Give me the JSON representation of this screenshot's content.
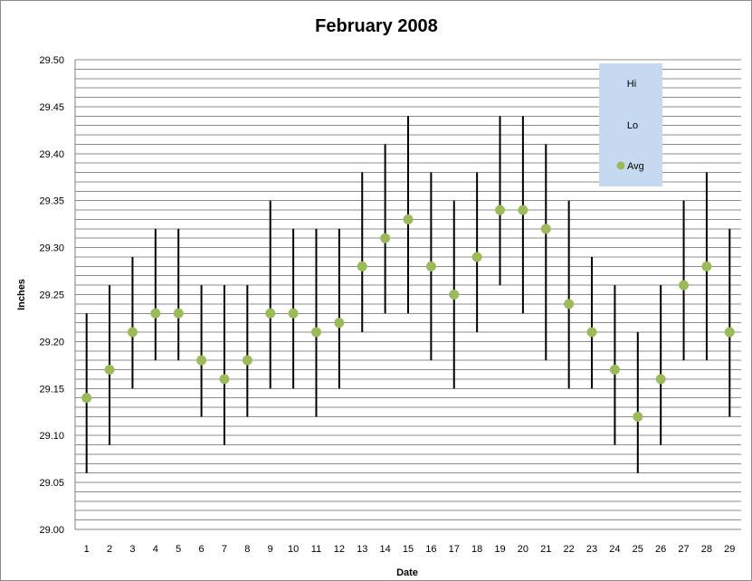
{
  "chart_data": {
    "type": "scatter",
    "title": "February 2008",
    "xlabel": "Date",
    "ylabel": "Inches",
    "ylim": [
      29.0,
      29.5
    ],
    "y_ticks": [
      "29.00",
      "29.05",
      "29.10",
      "29.15",
      "29.20",
      "29.25",
      "29.30",
      "29.35",
      "29.40",
      "29.45",
      "29.50"
    ],
    "x": [
      1,
      2,
      3,
      4,
      5,
      6,
      7,
      8,
      9,
      10,
      11,
      12,
      13,
      14,
      15,
      16,
      17,
      18,
      19,
      20,
      21,
      22,
      23,
      24,
      25,
      26,
      27,
      28,
      29
    ],
    "series": [
      {
        "name": "Hi",
        "values": [
          29.23,
          29.26,
          29.29,
          29.32,
          29.32,
          29.26,
          29.26,
          29.26,
          29.35,
          29.32,
          29.32,
          29.32,
          29.38,
          29.41,
          29.44,
          29.38,
          29.35,
          29.38,
          29.44,
          29.44,
          29.41,
          29.35,
          29.29,
          29.26,
          29.21,
          29.26,
          29.35,
          29.38,
          29.32
        ]
      },
      {
        "name": "Lo",
        "values": [
          29.06,
          29.09,
          29.15,
          29.18,
          29.18,
          29.12,
          29.09,
          29.12,
          29.15,
          29.15,
          29.12,
          29.15,
          29.21,
          29.23,
          29.23,
          29.18,
          29.15,
          29.21,
          29.26,
          29.23,
          29.18,
          29.15,
          29.15,
          29.09,
          29.06,
          29.09,
          29.18,
          29.18,
          29.12
        ]
      },
      {
        "name": "Avg",
        "values": [
          29.14,
          29.17,
          29.21,
          29.23,
          29.23,
          29.18,
          29.16,
          29.18,
          29.23,
          29.23,
          29.21,
          29.22,
          29.28,
          29.31,
          29.33,
          29.28,
          29.25,
          29.29,
          29.34,
          29.34,
          29.32,
          29.24,
          29.21,
          29.17,
          29.12,
          29.16,
          29.26,
          29.28,
          29.21
        ]
      }
    ],
    "grid": true,
    "minor_grid_step": 0.01,
    "legend_position": "top-right",
    "colors": {
      "avg_marker": "#9bbb59",
      "range_line": "#000000",
      "legend_bg": "#c6d9f1",
      "grid": "#8c8c8c"
    }
  }
}
